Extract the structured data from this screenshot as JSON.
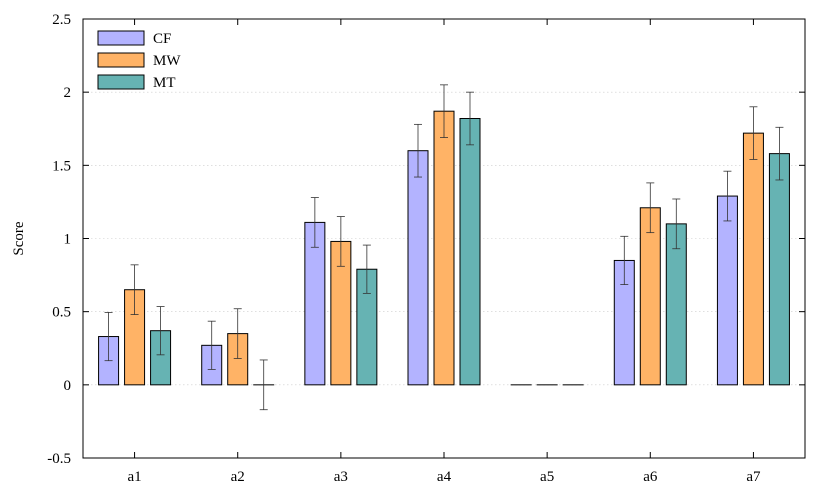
{
  "chart_data": {
    "type": "bar",
    "title": "",
    "xlabel": "",
    "ylabel": "Score",
    "ylim": [
      -0.5,
      2.5
    ],
    "yticks": [
      "-0.5",
      "0",
      "0.5",
      "1",
      "1.5",
      "2",
      "2.5"
    ],
    "grid": "horizontal dotted",
    "legend_position": "top-left",
    "categories": [
      "a1",
      "a2",
      "a3",
      "a4",
      "a5",
      "a6",
      "a7"
    ],
    "series": [
      {
        "name": "CF",
        "color": "#b3b3ff",
        "values": [
          0.33,
          0.27,
          1.11,
          1.6,
          0.0,
          0.85,
          1.29
        ],
        "errors": [
          0.165,
          0.165,
          0.17,
          0.18,
          0.0,
          0.165,
          0.17
        ]
      },
      {
        "name": "MW",
        "color": "#ffb366",
        "values": [
          0.65,
          0.35,
          0.98,
          1.87,
          0.0,
          1.21,
          1.72
        ],
        "errors": [
          0.17,
          0.17,
          0.17,
          0.18,
          0.0,
          0.17,
          0.18
        ]
      },
      {
        "name": "MT",
        "color": "#66b3b3",
        "values": [
          0.37,
          0.0,
          0.79,
          1.82,
          0.0,
          1.1,
          1.58
        ],
        "errors": [
          0.165,
          0.17,
          0.165,
          0.18,
          0.0,
          0.17,
          0.18
        ]
      }
    ]
  }
}
